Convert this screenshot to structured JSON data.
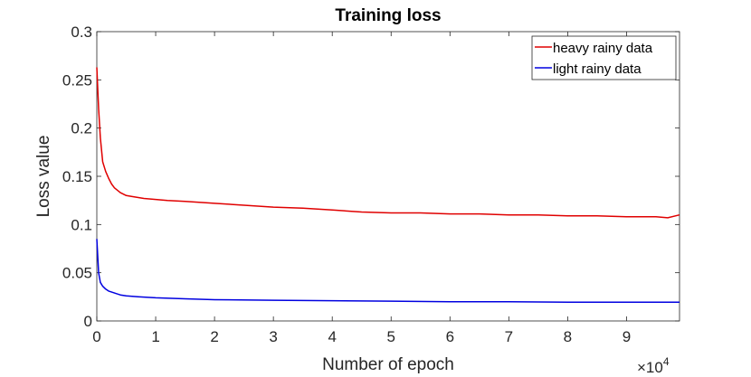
{
  "chart_data": {
    "type": "line",
    "title": "Training loss",
    "xlabel": "Number of epoch",
    "ylabel": "Loss value",
    "x_exponent_label": "×10",
    "x_exponent_power": "4",
    "xlim": [
      0,
      99000
    ],
    "ylim": [
      0,
      0.3
    ],
    "xticks": [
      0,
      10000,
      20000,
      30000,
      40000,
      50000,
      60000,
      70000,
      80000,
      90000
    ],
    "xtick_labels": [
      "0",
      "1",
      "2",
      "3",
      "4",
      "5",
      "6",
      "7",
      "8",
      "9"
    ],
    "yticks": [
      0,
      0.05,
      0.1,
      0.15,
      0.2,
      0.25,
      0.3
    ],
    "ytick_labels": [
      "0",
      "0.05",
      "0.1",
      "0.15",
      "0.2",
      "0.25",
      "0.3"
    ],
    "grid": false,
    "legend_position": "top-right",
    "series": [
      {
        "name": "heavy rainy data",
        "color": "#e00000",
        "x": [
          0,
          300,
          600,
          1000,
          1500,
          2000,
          2500,
          3000,
          4000,
          5000,
          6000,
          8000,
          10000,
          12000,
          15000,
          20000,
          25000,
          30000,
          35000,
          40000,
          45000,
          50000,
          55000,
          60000,
          65000,
          70000,
          75000,
          80000,
          85000,
          90000,
          95000,
          97000,
          99000
        ],
        "y": [
          0.263,
          0.22,
          0.19,
          0.165,
          0.155,
          0.148,
          0.142,
          0.138,
          0.133,
          0.13,
          0.129,
          0.127,
          0.126,
          0.125,
          0.124,
          0.122,
          0.12,
          0.118,
          0.117,
          0.115,
          0.113,
          0.112,
          0.112,
          0.111,
          0.111,
          0.11,
          0.11,
          0.109,
          0.109,
          0.108,
          0.108,
          0.107,
          0.11
        ]
      },
      {
        "name": "light rainy data",
        "color": "#0000e0",
        "x": [
          0,
          300,
          600,
          1000,
          1500,
          2000,
          3000,
          4000,
          5000,
          7000,
          10000,
          15000,
          20000,
          30000,
          40000,
          50000,
          60000,
          70000,
          80000,
          90000,
          99000
        ],
        "y": [
          0.085,
          0.05,
          0.04,
          0.036,
          0.033,
          0.031,
          0.029,
          0.027,
          0.026,
          0.025,
          0.024,
          0.023,
          0.022,
          0.0215,
          0.021,
          0.0205,
          0.02,
          0.02,
          0.0195,
          0.0195,
          0.0195
        ]
      }
    ]
  }
}
